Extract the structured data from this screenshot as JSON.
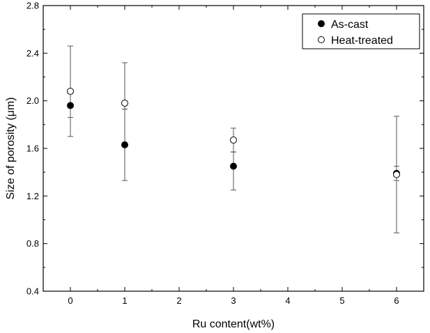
{
  "chart_data": {
    "type": "scatter",
    "xlabel": "Ru content(wt%)",
    "ylabel": "Size of porosity (μm)",
    "xlim": [
      -0.5,
      6.5
    ],
    "ylim": [
      0.4,
      2.8
    ],
    "x_ticks": [
      {
        "value": 0,
        "label": "0"
      },
      {
        "value": 1,
        "label": "1"
      },
      {
        "value": 2,
        "label": "2"
      },
      {
        "value": 3,
        "label": "3"
      },
      {
        "value": 4,
        "label": "4"
      },
      {
        "value": 5,
        "label": "5"
      },
      {
        "value": 6,
        "label": "6"
      }
    ],
    "y_ticks": [
      {
        "value": 0.4,
        "label": "0.4"
      },
      {
        "value": 0.8,
        "label": "0.8"
      },
      {
        "value": 1.2,
        "label": "1.2"
      },
      {
        "value": 1.6,
        "label": "1.6"
      },
      {
        "value": 2.0,
        "label": "2.0"
      },
      {
        "value": 2.4,
        "label": "2.4"
      },
      {
        "value": 2.8,
        "label": "2.8"
      }
    ],
    "grid": false,
    "legend_position": "top-right",
    "series": [
      {
        "name": "As-cast",
        "marker": "filled-circle",
        "color": "#000000",
        "points": [
          {
            "x": 0,
            "y": 1.96,
            "err_low": 1.7,
            "err_high": 2.06
          },
          {
            "x": 1,
            "y": 1.63,
            "err_low": 1.33,
            "err_high": 1.93
          },
          {
            "x": 3,
            "y": 1.45,
            "err_low": 1.25,
            "err_high": 1.57
          },
          {
            "x": 6,
            "y": 1.39,
            "err_low": 1.33,
            "err_high": 1.45
          }
        ]
      },
      {
        "name": "Heat-treated",
        "marker": "open-circle",
        "color": "#000000",
        "points": [
          {
            "x": 0,
            "y": 2.08,
            "err_low": 1.86,
            "err_high": 2.46
          },
          {
            "x": 1,
            "y": 1.98,
            "err_low": 1.93,
            "err_high": 2.32
          },
          {
            "x": 3,
            "y": 1.67,
            "err_low": 1.57,
            "err_high": 1.77
          },
          {
            "x": 6,
            "y": 1.38,
            "err_low": 0.89,
            "err_high": 1.87
          }
        ]
      }
    ]
  }
}
